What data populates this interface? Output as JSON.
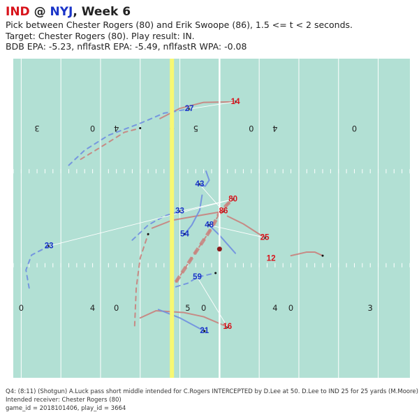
{
  "header": {
    "away": "IND",
    "sep": "@",
    "home": "NYJ",
    "week": ", Week 6",
    "line1": "Pick between Chester Rogers (80) and Erik Swoope (86), 1.5 <= t < 2 seconds.",
    "line2": "Target: Chester Rogers (80). Play result: IN.",
    "line3": "BDB EPA: -5.23, nflfastR EPA: -5.49, nflfastR WPA: -0.08"
  },
  "footer": {
    "line1": "Q4: (8:11) (Shotgun) A.Luck pass short middle intended for C.Rogers INTERCEPTED by D.Lee at 50. D.Lee to IND 25 for 25 yards (M.Moore).",
    "line2": "Intended receiver: Chester Rogers (80)",
    "line3": "game_id = 2018101406, play_id = 3664"
  },
  "colors": {
    "field": "#b2e0d4",
    "offense": "#d8141c",
    "defense": "#1a34c8",
    "offense_path": "#c9817c",
    "defense_path": "#6f8fe0",
    "line_of_scrimmage": "#f7f871",
    "first_down": "#ffffff",
    "football": "#8b1a1a"
  },
  "chart_data": {
    "type": "scatter",
    "x_range": [
      24,
      74
    ],
    "y_range": [
      0,
      53.3
    ],
    "line_of_scrimmage": 44,
    "first_down_line": 50,
    "yard_numbers": {
      "top": [
        {
          "x": 27,
          "text": "3"
        },
        {
          "x": 34,
          "text": "0"
        },
        {
          "x": 37,
          "text": "4"
        },
        {
          "x": 44,
          "text": "0"
        },
        {
          "x": 47,
          "text": "5"
        },
        {
          "x": 54,
          "text": "0"
        },
        {
          "x": 57,
          "text": "4"
        },
        {
          "x": 67,
          "text": "0"
        }
      ],
      "bottom": [
        {
          "x": 25,
          "text": "0"
        },
        {
          "x": 34,
          "text": "4"
        },
        {
          "x": 37,
          "text": "0"
        },
        {
          "x": 46,
          "text": "5"
        },
        {
          "x": 48,
          "text": "0"
        },
        {
          "x": 57,
          "text": "4"
        },
        {
          "x": 59,
          "text": "0"
        },
        {
          "x": 69,
          "text": "3"
        }
      ]
    },
    "football": {
      "x": 50,
      "y": 21.5
    },
    "offense_players": [
      {
        "number": "14",
        "x": 52.0,
        "y": 46.1,
        "path": [
          [
            42.5,
            43.3
          ],
          [
            45,
            45
          ],
          [
            48,
            46
          ],
          [
            52,
            46.1
          ]
        ],
        "dash": false
      },
      {
        "number": "80",
        "x": 51.7,
        "y": 29.8,
        "path": [
          [
            44.5,
            16
          ],
          [
            46,
            19
          ],
          [
            47.5,
            22
          ],
          [
            49,
            25
          ],
          [
            50,
            27.5
          ],
          [
            51,
            29
          ],
          [
            51.7,
            29.8
          ]
        ],
        "dash": true
      },
      {
        "number": "86",
        "x": 50.5,
        "y": 27.8,
        "path": [
          [
            41.5,
            25
          ],
          [
            44,
            26.3
          ],
          [
            47,
            27
          ],
          [
            50.5,
            27.8
          ]
        ],
        "dash": false
      },
      {
        "number": "25",
        "x": 55.7,
        "y": 23.4,
        "path": [
          [
            51,
            27
          ],
          [
            53,
            25.7
          ],
          [
            55.7,
            23.4
          ]
        ],
        "dash": false
      },
      {
        "number": "12",
        "x": 56.5,
        "y": 19.9,
        "path": [
          [
            59,
            20.4
          ],
          [
            61,
            21
          ],
          [
            62,
            21
          ],
          [
            63,
            20.4
          ]
        ],
        "dash": false
      },
      {
        "number": "16",
        "x": 51.0,
        "y": 8.5,
        "path": [
          [
            40,
            10
          ],
          [
            42,
            11.2
          ],
          [
            45.5,
            10.9
          ],
          [
            48,
            10.2
          ],
          [
            51,
            8.5
          ]
        ],
        "dash": false
      },
      {
        "number": "",
        "x": 32.5,
        "y": 36.5,
        "path": [
          [
            32.5,
            36.5
          ],
          [
            35,
            38.5
          ],
          [
            38,
            41
          ],
          [
            40,
            41.7
          ]
        ],
        "dash": true
      },
      {
        "number": "",
        "x": 39.3,
        "y": 8.7,
        "path": [
          [
            39.3,
            8.7
          ],
          [
            39.5,
            15
          ],
          [
            40,
            20
          ],
          [
            41,
            24
          ]
        ],
        "dash": true
      }
    ],
    "defense_players": [
      {
        "number": "27",
        "x": 46.2,
        "y": 44.9,
        "path": [
          [
            31,
            35.5
          ],
          [
            33,
            38
          ],
          [
            36,
            40.5
          ],
          [
            40,
            42.5
          ],
          [
            43,
            44.2
          ],
          [
            46.2,
            44.9
          ]
        ],
        "dash": true
      },
      {
        "number": "43",
        "x": 47.5,
        "y": 32.3,
        "path": [
          [
            48.3,
            34.5
          ],
          [
            48.7,
            33
          ],
          [
            48.2,
            32
          ],
          [
            47.5,
            32.3
          ]
        ],
        "dash": false
      },
      {
        "number": "33",
        "x": 45.0,
        "y": 27.8,
        "path": [
          [
            39,
            23
          ],
          [
            41,
            25.5
          ],
          [
            43,
            27
          ],
          [
            45,
            27.8
          ]
        ],
        "dash": true
      },
      {
        "number": "54",
        "x": 45.6,
        "y": 24.0,
        "path": [
          [
            47.8,
            30.5
          ],
          [
            47.5,
            28
          ],
          [
            46.5,
            25.5
          ],
          [
            45.6,
            24
          ]
        ],
        "dash": false
      },
      {
        "number": "48",
        "x": 48.7,
        "y": 25.5,
        "path": [
          [
            52,
            20.8
          ],
          [
            51,
            22.3
          ],
          [
            50,
            23.8
          ],
          [
            48.7,
            25.5
          ]
        ],
        "dash": false
      },
      {
        "number": "23",
        "x": 28.5,
        "y": 22.0,
        "path": [
          [
            26,
            15
          ],
          [
            25.6,
            18
          ],
          [
            26.3,
            20.5
          ],
          [
            28.5,
            22
          ]
        ],
        "dash": true
      },
      {
        "number": "59",
        "x": 47.2,
        "y": 16.8,
        "path": [
          [
            44.5,
            15.2
          ],
          [
            46,
            15.8
          ],
          [
            47.2,
            16.8
          ],
          [
            49.5,
            17.5
          ]
        ],
        "dash": true
      },
      {
        "number": "21",
        "x": 48.1,
        "y": 7.8,
        "path": [
          [
            42.3,
            11.4
          ],
          [
            45,
            10
          ],
          [
            48.1,
            7.8
          ]
        ],
        "dash": false
      }
    ],
    "assignments": [
      {
        "from": "27",
        "to": "14"
      },
      {
        "from": "33",
        "to": "80"
      },
      {
        "from": "23",
        "to": "80"
      },
      {
        "from": "43",
        "to": "86"
      },
      {
        "from": "48",
        "to": "25"
      },
      {
        "from": "59",
        "to": "16"
      }
    ]
  }
}
